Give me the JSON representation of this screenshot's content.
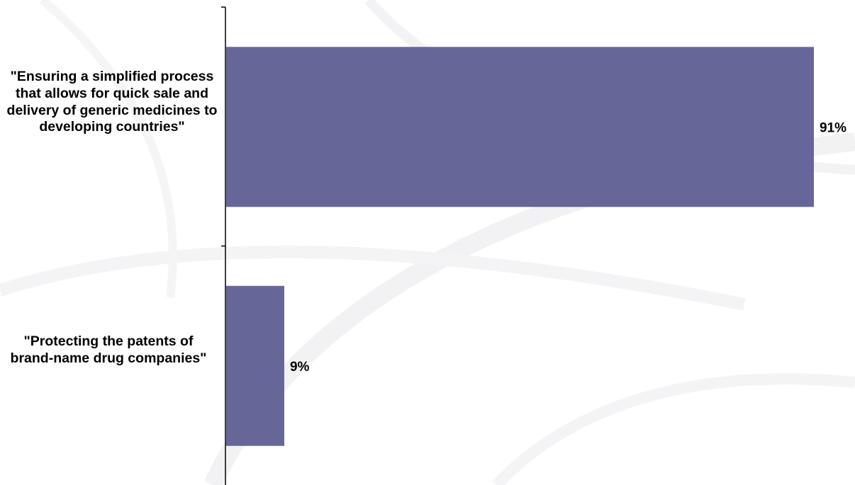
{
  "chart_data": {
    "type": "bar",
    "orientation": "horizontal",
    "categories": [
      "\"Ensuring a simplified process that allows for quick sale and delivery of generic medicines to developing countries\"",
      "\"Protecting the patents of brand-name drug companies\""
    ],
    "values": [
      91,
      9
    ],
    "value_labels": [
      "91%",
      "9%"
    ],
    "unit": "%",
    "xlim": [
      0,
      100
    ],
    "grid": false,
    "legend": "none",
    "bar_color": "#666699",
    "axis_color": "#000000"
  }
}
